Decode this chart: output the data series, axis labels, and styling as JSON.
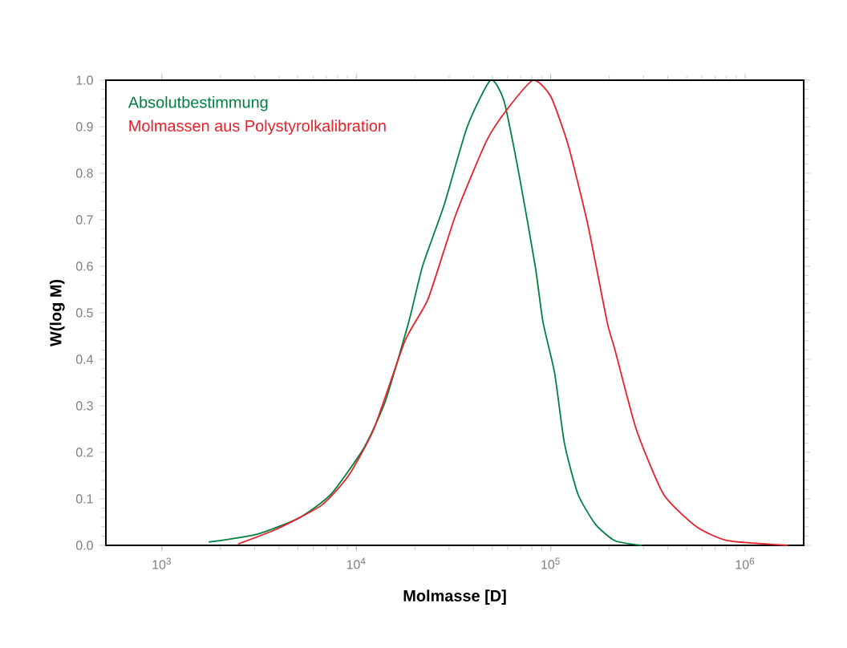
{
  "chart_data": {
    "type": "line",
    "xlabel": "Molmasse [D]",
    "ylabel": "W(log M)",
    "log": "x",
    "legend": "top left",
    "xlim": [
      515,
      2000000
    ],
    "ylim": [
      0,
      1
    ],
    "xticks": [
      {
        "value": 1000,
        "label": "10$^{3}$"
      },
      {
        "value": 10000,
        "label": "10$^{4}$"
      },
      {
        "value": 100000,
        "label": "10$^{5}$"
      },
      {
        "value": 1000000,
        "label": "10$^{6}$"
      }
    ],
    "yticks": [
      {
        "value": 0,
        "label": "0.0"
      },
      {
        "value": 0.1,
        "label": "0.1"
      },
      {
        "value": 0.2,
        "label": "0.2"
      },
      {
        "value": 0.3,
        "label": "0.3"
      },
      {
        "value": 0.4,
        "label": "0.4"
      },
      {
        "value": 0.5,
        "label": "0.5"
      },
      {
        "value": 0.6,
        "label": "0.6"
      },
      {
        "value": 0.7,
        "label": "0.7"
      },
      {
        "value": 0.8,
        "label": "0.8"
      },
      {
        "value": 0.9,
        "label": "0.9"
      },
      {
        "value": 1,
        "label": "1.0"
      }
    ],
    "series": [
      {
        "name": "Absolutbestimmung",
        "color": "#008040",
        "x": [
          1740,
          3090,
          5130,
          7410,
          10960,
          14100,
          18600,
          21900,
          28200,
          37200,
          49000,
          57500,
          69200,
          83200,
          91200,
          104700,
          117500,
          138000,
          170000,
          214000,
          295000
        ],
        "values": [
          0.007,
          0.024,
          0.06,
          0.11,
          0.21,
          0.31,
          0.48,
          0.6,
          0.73,
          0.9,
          1.0,
          0.955,
          0.79,
          0.6,
          0.48,
          0.37,
          0.22,
          0.11,
          0.045,
          0.01,
          0.0
        ]
      },
      {
        "name": "Molmassen aus Polystyrolkalibration",
        "color": "#e8202a",
        "x": [
          2460,
          3890,
          6610,
          9120,
          12300,
          17800,
          23400,
          32400,
          46800,
          60300,
          81300,
          100000,
          123000,
          155000,
          195000,
          214000,
          275000,
          380000,
          562000,
          813000,
          1660000
        ],
        "values": [
          0.003,
          0.035,
          0.086,
          0.15,
          0.25,
          0.44,
          0.53,
          0.71,
          0.87,
          0.94,
          1.0,
          0.965,
          0.86,
          0.69,
          0.48,
          0.42,
          0.25,
          0.11,
          0.04,
          0.01,
          0.0
        ]
      }
    ]
  }
}
